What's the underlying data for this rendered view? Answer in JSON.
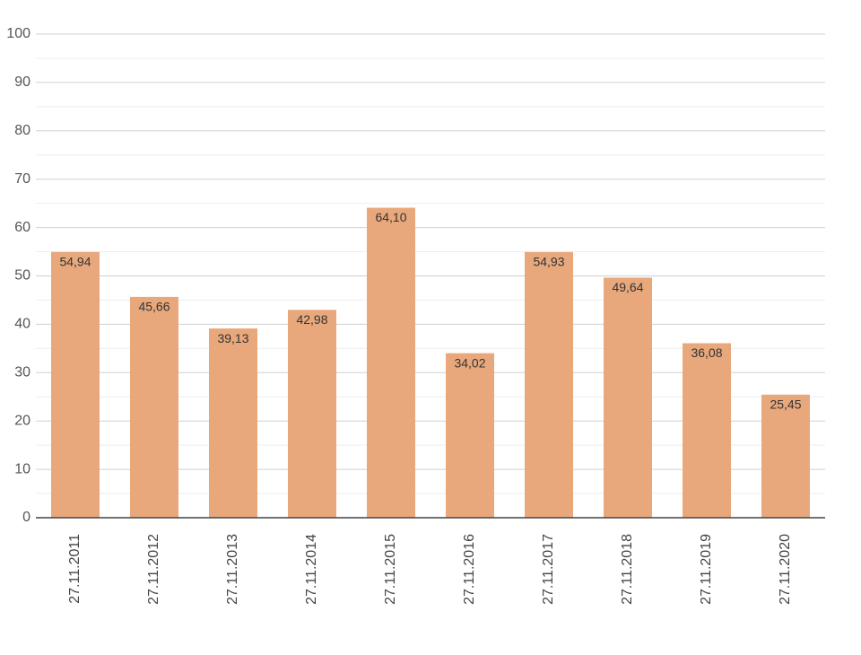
{
  "chart_data": {
    "type": "bar",
    "categories": [
      "27.11.2011",
      "27.11.2012",
      "27.11.2013",
      "27.11.2014",
      "27.11.2015",
      "27.11.2016",
      "27.11.2017",
      "27.11.2018",
      "27.11.2019",
      "27.11.2020"
    ],
    "values": [
      54.94,
      45.66,
      39.13,
      42.98,
      64.1,
      34.02,
      54.93,
      49.64,
      36.08,
      25.45
    ],
    "value_labels": [
      "54,94",
      "45,66",
      "39,13",
      "42,98",
      "64,10",
      "34,02",
      "54,93",
      "49,64",
      "36,08",
      "25,45"
    ],
    "color": "#e8a87c",
    "ylim": [
      0,
      100
    ],
    "yticks": [
      0,
      10,
      20,
      30,
      40,
      50,
      60,
      70,
      80,
      90,
      100
    ],
    "minor_yticks": [
      5,
      15,
      25,
      35,
      45,
      55,
      65,
      75,
      85,
      95
    ],
    "grid": true
  }
}
